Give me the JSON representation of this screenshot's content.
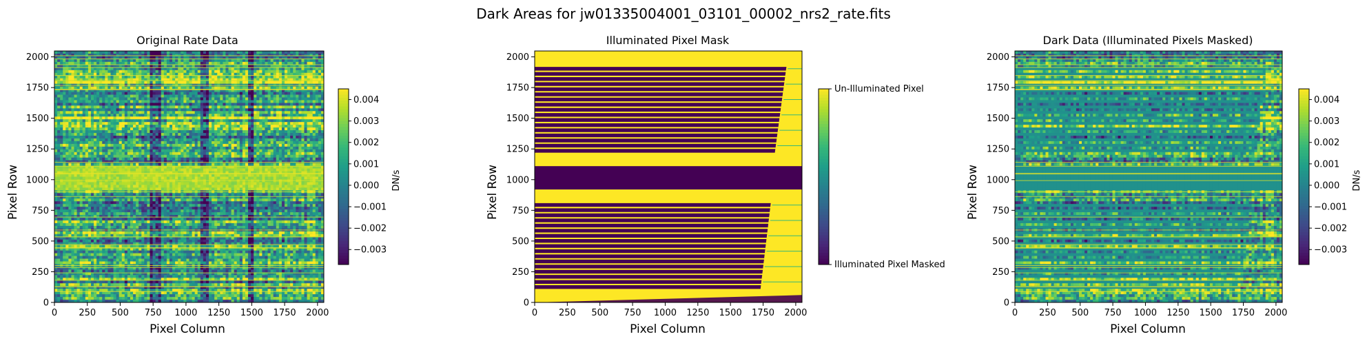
{
  "figure": {
    "suptitle": "Dark Areas for jw01335004001_03101_00002_nrs2_rate.fits"
  },
  "colors": {
    "viridis": [
      "#440154",
      "#482878",
      "#3e4a89",
      "#31688e",
      "#26828e",
      "#1f9e89",
      "#35b779",
      "#6ece58",
      "#b5de2b",
      "#fde725"
    ],
    "mask_on": "#fde725",
    "mask_off": "#440154",
    "masked_fill": "#21918c"
  },
  "chart_data": [
    {
      "type": "heatmap",
      "title": "Original Rate Data",
      "xlabel": "Pixel Column",
      "ylabel": "Pixel Row",
      "xlim": [
        0,
        2048
      ],
      "ylim": [
        0,
        2048
      ],
      "xticks": [
        0,
        250,
        500,
        750,
        1000,
        1250,
        1500,
        1750,
        2000
      ],
      "yticks": [
        0,
        250,
        500,
        750,
        1000,
        1250,
        1500,
        1750,
        2000
      ],
      "colorbar": {
        "label": "DN/s",
        "range": [
          -0.0037,
          0.0045
        ],
        "ticks": [
          0.004,
          0.003,
          0.002,
          0.001,
          0.0,
          -0.001,
          -0.002,
          -0.003
        ],
        "tick_labels": [
          "0.004",
          "0.003",
          "0.002",
          "0.001",
          "0.000",
          "−0.001",
          "−0.002",
          "−0.003"
        ]
      },
      "bright_band_rows": [
        920,
        1120
      ],
      "dark_columns": [
        [
          730,
          800
        ],
        [
          1120,
          1170
        ],
        [
          1480,
          1520
        ]
      ]
    },
    {
      "type": "heatmap",
      "title": "Illuminated Pixel Mask",
      "xlabel": "Pixel Column",
      "ylabel": "Pixel Row",
      "xlim": [
        0,
        2048
      ],
      "ylim": [
        0,
        2048
      ],
      "xticks": [
        0,
        250,
        500,
        750,
        1000,
        1250,
        1500,
        1750,
        2000
      ],
      "yticks": [
        0,
        250,
        500,
        750,
        1000,
        1250,
        1500,
        1750,
        2000
      ],
      "colorbar": {
        "labels": [
          "Un-Illuminated Pixel",
          "Illuminated Pixel Masked"
        ],
        "range": [
          0,
          1
        ]
      },
      "masked_band_rows": [
        920,
        1110
      ],
      "upper_slit_block": {
        "rows": [
          1220,
          1930
        ],
        "x_end_bottom": 1840,
        "x_end_top": 1930,
        "count": 17
      },
      "lower_slit_block": {
        "rows": [
          110,
          820
        ],
        "x_end_bottom": 1730,
        "x_end_top": 1810,
        "count": 17
      }
    },
    {
      "type": "heatmap",
      "title": "Dark Data (Illuminated Pixels Masked)",
      "xlabel": "Pixel Column",
      "ylabel": "Pixel Row",
      "xlim": [
        0,
        2048
      ],
      "ylim": [
        0,
        2048
      ],
      "xticks": [
        0,
        250,
        500,
        750,
        1000,
        1250,
        1500,
        1750,
        2000
      ],
      "yticks": [
        0,
        250,
        500,
        750,
        1000,
        1250,
        1500,
        1750,
        2000
      ],
      "colorbar": {
        "label": "DN/s",
        "range": [
          -0.0037,
          0.0045
        ],
        "ticks": [
          0.004,
          0.003,
          0.002,
          0.001,
          0.0,
          -0.001,
          -0.002,
          -0.003
        ],
        "tick_labels": [
          "0.004",
          "0.003",
          "0.002",
          "0.001",
          "0.000",
          "−0.001",
          "−0.002",
          "−0.003"
        ]
      },
      "masked_band_rows": [
        920,
        1110
      ]
    }
  ]
}
